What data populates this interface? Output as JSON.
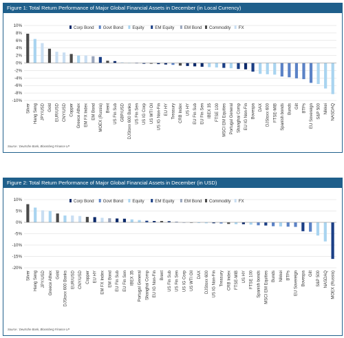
{
  "colors": {
    "header_bg": "#1f5f8b",
    "corp_bond": "#0d2a6b",
    "govt_bond": "#5b82c6",
    "equity": "#a9d4f0",
    "em_equity": "#1b3f86",
    "em_bond": "#9aa6bd",
    "commodity": "#4a4a4a",
    "fx": "#c9def2"
  },
  "chart_data": [
    {
      "type": "bar",
      "title": "Figure 1: Total Return Performance of Major Global Financial Assets in December (in Local Currency)",
      "source": "Source : Deutsche Bank, Bloomberg Finance LP",
      "ylim": [
        -10,
        10
      ],
      "ytick_values": [
        -10,
        -8,
        -6,
        -4,
        -2,
        0,
        2,
        4,
        6,
        8,
        10
      ],
      "ytick_labels": [
        "-10%",
        "-8%",
        "-6%",
        "-4%",
        "-2%",
        "0%",
        "2%",
        "4%",
        "6%",
        "8%",
        "10%"
      ],
      "legend": [
        {
          "label": "Corp Bond",
          "cls": "corp_bond"
        },
        {
          "label": "Govt Bond",
          "cls": "govt_bond"
        },
        {
          "label": "Equity",
          "cls": "equity"
        },
        {
          "label": "EM Equity",
          "cls": "em_equity"
        },
        {
          "label": "EM Bond",
          "cls": "em_bond"
        },
        {
          "label": "Commodity",
          "cls": "commodity"
        },
        {
          "label": "FX",
          "cls": "fx"
        }
      ],
      "categories": [
        "Silver",
        "Hang Seng",
        "JPY/USD",
        "Gold",
        "EUR/USD",
        "CNY/USD",
        "Copper",
        "Greece Athex",
        "EM FX Index",
        "EM Bond",
        "MOEX (Russia)",
        "Brent",
        "US Fin Sub",
        "GBP/USD",
        "DJStoxx 600 Banks",
        "US Fin Sen",
        "US IG Corp",
        "US WTI Oil",
        "US IG Non-Fin",
        "EU HY",
        "Treasury",
        "CRB Index",
        "US HY",
        "EU Fin Sub",
        "EU Fin Sen",
        "IBEX 35",
        "FTSE 100",
        "MSCI EM Equities",
        "Portugal General",
        "Shanghai Comp",
        "EU IG Non-Fin",
        "Bovespa",
        "DAX",
        "DJStoxx 600",
        "FTSE-MIB",
        "Spanish bonds",
        "Bunds",
        "Gilt",
        "BTPs",
        "EU Sovereign",
        "S&P 500",
        "Nikkei",
        "NASDAQ"
      ],
      "values": [
        7.8,
        6.4,
        5.3,
        3.8,
        3.0,
        2.8,
        2.4,
        2.0,
        2.0,
        1.8,
        1.6,
        0.6,
        0.5,
        0.2,
        -0.1,
        -0.1,
        -0.2,
        -0.2,
        -0.3,
        -0.4,
        -0.5,
        -0.7,
        -0.8,
        -0.9,
        -1.0,
        -1.1,
        -1.2,
        -1.3,
        -1.4,
        -1.6,
        -1.7,
        -2.3,
        -2.9,
        -3.0,
        -3.1,
        -3.6,
        -3.8,
        -4.1,
        -4.3,
        -5.3,
        -5.6,
        -6.8,
        -8.3
      ],
      "classes": [
        "commodity",
        "equity",
        "fx",
        "commodity",
        "fx",
        "fx",
        "commodity",
        "equity",
        "fx",
        "em_bond",
        "em_equity",
        "commodity",
        "corp_bond",
        "fx",
        "equity",
        "corp_bond",
        "corp_bond",
        "commodity",
        "corp_bond",
        "corp_bond",
        "govt_bond",
        "commodity",
        "corp_bond",
        "corp_bond",
        "corp_bond",
        "equity",
        "equity",
        "em_equity",
        "equity",
        "em_equity",
        "corp_bond",
        "em_equity",
        "equity",
        "equity",
        "equity",
        "govt_bond",
        "govt_bond",
        "govt_bond",
        "govt_bond",
        "govt_bond",
        "equity",
        "equity",
        "equity"
      ]
    },
    {
      "type": "bar",
      "title": "Figure 2: Total Return Performance of Major Global Financial Assets in December (in USD)",
      "source": "Source : Deutsche Bank, Bloomberg Finance LP",
      "ylim": [
        -20,
        10
      ],
      "ytick_values": [
        -20,
        -15,
        -10,
        -5,
        0,
        5,
        10
      ],
      "ytick_labels": [
        "-20%",
        "-15%",
        "-10%",
        "-5%",
        "0%",
        "5%",
        "10%"
      ],
      "legend": [
        {
          "label": "Corp Bond",
          "cls": "corp_bond"
        },
        {
          "label": "Govt Bond",
          "cls": "govt_bond"
        },
        {
          "label": "Equity",
          "cls": "equity"
        },
        {
          "label": "EM Equity",
          "cls": "em_equity"
        },
        {
          "label": "EM Bond",
          "cls": "em_bond"
        },
        {
          "label": "Commodity",
          "cls": "commodity"
        },
        {
          "label": "FX",
          "cls": "fx"
        }
      ],
      "categories": [
        "Silver",
        "Hang Seng",
        "JPY/USD",
        "Greece Athex",
        "Gold",
        "DJStoxx 600 Banks",
        "EUR/USD",
        "CNY/USD",
        "Copper",
        "EU HY",
        "EM FX Index",
        "EM Bond",
        "EU Fin Sub",
        "EU Fin Sen",
        "IBEX 35",
        "Portugal General",
        "Shanghai Comp",
        "EU IG Non-Fin",
        "Brent",
        "US Fin Sub",
        "US Fin Sen",
        "US IG Corp",
        "US WTI Oil",
        "DAX",
        "DJStoxx 600",
        "US IG Non-Fin",
        "Treasury",
        "CRB Index",
        "FTSE-MIB",
        "US HY",
        "FTSE 100",
        "Spanish bonds",
        "MSCI EM Equities",
        "Bunds",
        "Nikkei",
        "BTPs",
        "EU Sovereign",
        "Bovespa",
        "Gilt",
        "S&P 500",
        "NASDAQ",
        "MOEX (Russia)"
      ],
      "values": [
        8.0,
        6.5,
        5.3,
        5.0,
        3.9,
        3.0,
        3.0,
        2.8,
        2.4,
        2.3,
        2.0,
        1.8,
        1.7,
        1.6,
        1.3,
        1.0,
        0.7,
        0.6,
        0.6,
        0.5,
        0.2,
        -0.1,
        -0.2,
        -0.3,
        -0.4,
        -0.4,
        -0.5,
        -0.7,
        -0.8,
        -0.8,
        -1.0,
        -1.3,
        -1.4,
        -1.7,
        -1.8,
        -1.9,
        -2.0,
        -3.9,
        -4.1,
        -5.8,
        -8.4,
        -16.1
      ],
      "classes": [
        "commodity",
        "equity",
        "fx",
        "equity",
        "commodity",
        "equity",
        "fx",
        "fx",
        "commodity",
        "corp_bond",
        "fx",
        "em_bond",
        "corp_bond",
        "corp_bond",
        "equity",
        "equity",
        "em_equity",
        "corp_bond",
        "commodity",
        "corp_bond",
        "corp_bond",
        "corp_bond",
        "commodity",
        "equity",
        "equity",
        "corp_bond",
        "govt_bond",
        "commodity",
        "equity",
        "corp_bond",
        "equity",
        "govt_bond",
        "em_equity",
        "govt_bond",
        "equity",
        "govt_bond",
        "govt_bond",
        "em_equity",
        "govt_bond",
        "equity",
        "equity",
        "em_equity"
      ]
    }
  ]
}
